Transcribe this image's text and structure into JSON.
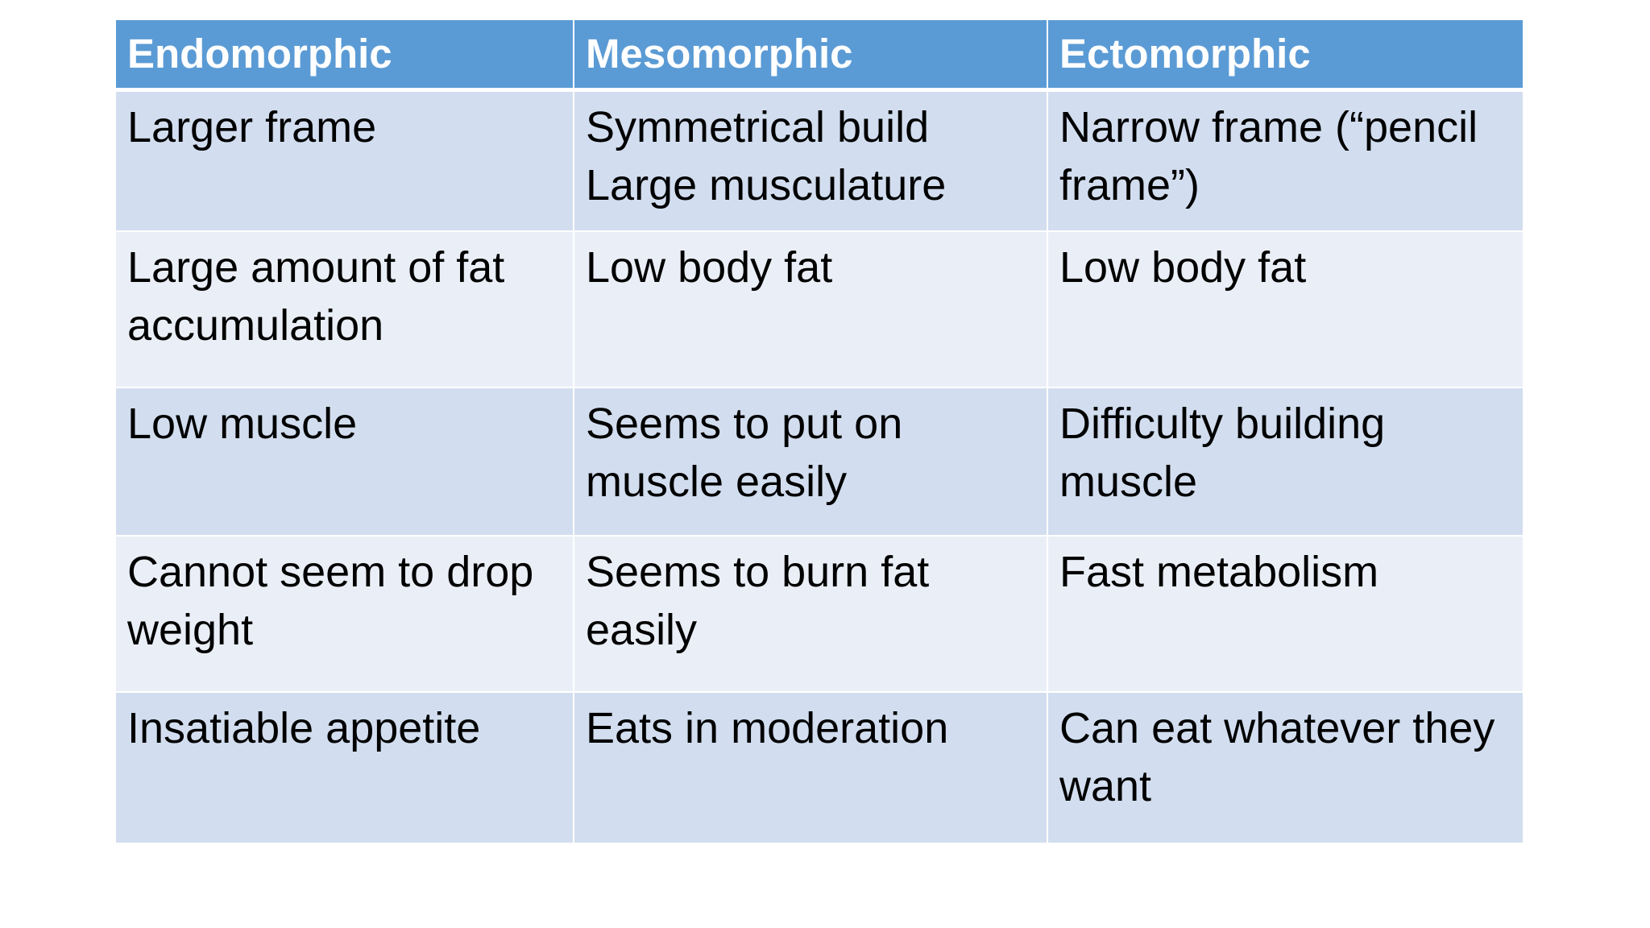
{
  "colors": {
    "header_bg": "#5b9bd5",
    "row_odd_bg": "#d2deef",
    "row_even_bg": "#eaeff7",
    "header_text": "#ffffff",
    "body_text": "#000000"
  },
  "table": {
    "headers": [
      "Endomorphic",
      "Mesomorphic",
      "Ectomorphic"
    ],
    "rows": [
      {
        "endomorphic": "Larger frame",
        "mesomorphic": [
          "Symmetrical build",
          "Large musculature"
        ],
        "ectomorphic": "Narrow frame (“pencil frame”)"
      },
      {
        "endomorphic": "Large amount of fat accumulation",
        "mesomorphic": "Low body fat",
        "ectomorphic": "Low body fat"
      },
      {
        "endomorphic": "Low muscle",
        "mesomorphic": "Seems to put on muscle easily",
        "ectomorphic": "Difficulty building muscle"
      },
      {
        "endomorphic": "Cannot seem to drop weight",
        "mesomorphic": "Seems to burn fat easily",
        "ectomorphic": "Fast metabolism"
      },
      {
        "endomorphic": "Insatiable appetite",
        "mesomorphic": "Eats in moderation",
        "ectomorphic": "Can eat whatever they want"
      }
    ]
  }
}
